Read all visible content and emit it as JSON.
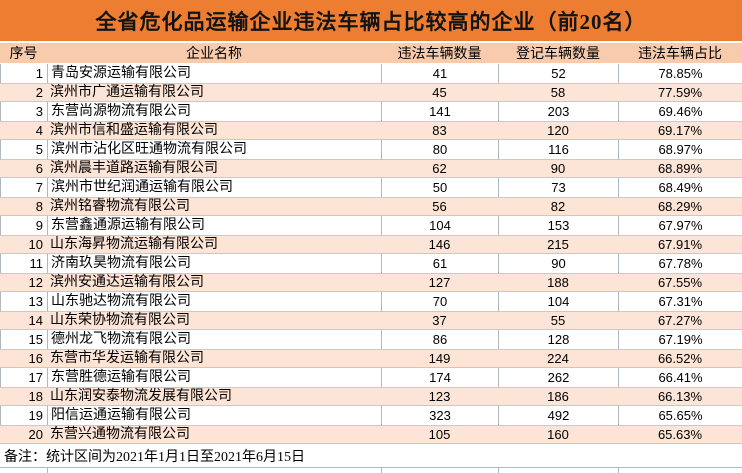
{
  "table": {
    "title": "全省危化品运输企业违法车辆占比较高的企业（前20名）",
    "columns": [
      "序号",
      "企业名称",
      "违法车辆数量",
      "登记车辆数量",
      "违法车辆占比"
    ],
    "rows": [
      {
        "seq": "1",
        "name": "青岛安源运输有限公司",
        "illegal": "41",
        "registered": "52",
        "ratio": "78.85%"
      },
      {
        "seq": "2",
        "name": "滨州市广通运输有限公司",
        "illegal": "45",
        "registered": "58",
        "ratio": "77.59%"
      },
      {
        "seq": "3",
        "name": "东营尚源物流有限公司",
        "illegal": "141",
        "registered": "203",
        "ratio": "69.46%"
      },
      {
        "seq": "4",
        "name": "滨州市信和盛运输有限公司",
        "illegal": "83",
        "registered": "120",
        "ratio": "69.17%"
      },
      {
        "seq": "5",
        "name": "滨州市沾化区旺通物流有限公司",
        "illegal": "80",
        "registered": "116",
        "ratio": "68.97%"
      },
      {
        "seq": "6",
        "name": "滨州晨丰道路运输有限公司",
        "illegal": "62",
        "registered": "90",
        "ratio": "68.89%"
      },
      {
        "seq": "7",
        "name": "滨州市世纪润通运输有限公司",
        "illegal": "50",
        "registered": "73",
        "ratio": "68.49%"
      },
      {
        "seq": "8",
        "name": "滨州铭睿物流有限公司",
        "illegal": "56",
        "registered": "82",
        "ratio": "68.29%"
      },
      {
        "seq": "9",
        "name": "东营鑫通源运输有限公司",
        "illegal": "104",
        "registered": "153",
        "ratio": "67.97%"
      },
      {
        "seq": "10",
        "name": "山东海昇物流运输有限公司",
        "illegal": "146",
        "registered": "215",
        "ratio": "67.91%"
      },
      {
        "seq": "11",
        "name": "济南玖昊物流有限公司",
        "illegal": "61",
        "registered": "90",
        "ratio": "67.78%"
      },
      {
        "seq": "12",
        "name": "滨州安通达运输有限公司",
        "illegal": "127",
        "registered": "188",
        "ratio": "67.55%"
      },
      {
        "seq": "13",
        "name": "山东驰达物流有限公司",
        "illegal": "70",
        "registered": "104",
        "ratio": "67.31%"
      },
      {
        "seq": "14",
        "name": "山东荣协物流有限公司",
        "illegal": "37",
        "registered": "55",
        "ratio": "67.27%"
      },
      {
        "seq": "15",
        "name": "德州龙飞物流有限公司",
        "illegal": "86",
        "registered": "128",
        "ratio": "67.19%"
      },
      {
        "seq": "16",
        "name": "东营市华发运输有限公司",
        "illegal": "149",
        "registered": "224",
        "ratio": "66.52%"
      },
      {
        "seq": "17",
        "name": "东营胜德运输有限公司",
        "illegal": "174",
        "registered": "262",
        "ratio": "66.41%"
      },
      {
        "seq": "18",
        "name": "山东润安泰物流发展有限公司",
        "illegal": "123",
        "registered": "186",
        "ratio": "66.13%"
      },
      {
        "seq": "19",
        "name": "阳信运通运输有限公司",
        "illegal": "323",
        "registered": "492",
        "ratio": "65.65%"
      },
      {
        "seq": "20",
        "name": "东营兴通物流有限公司",
        "illegal": "105",
        "registered": "160",
        "ratio": "65.63%"
      }
    ],
    "footnote": "备注：统计区间为2021年1月1日至2021年6月15日"
  },
  "colors": {
    "title_bg": "#ED7D31",
    "header_bg": "#F8CBAD",
    "alt_row_bg": "#FCE4D6",
    "alt_row_border": "#F2BE93",
    "gridline": "#AFB7C1",
    "text": "#000000"
  }
}
